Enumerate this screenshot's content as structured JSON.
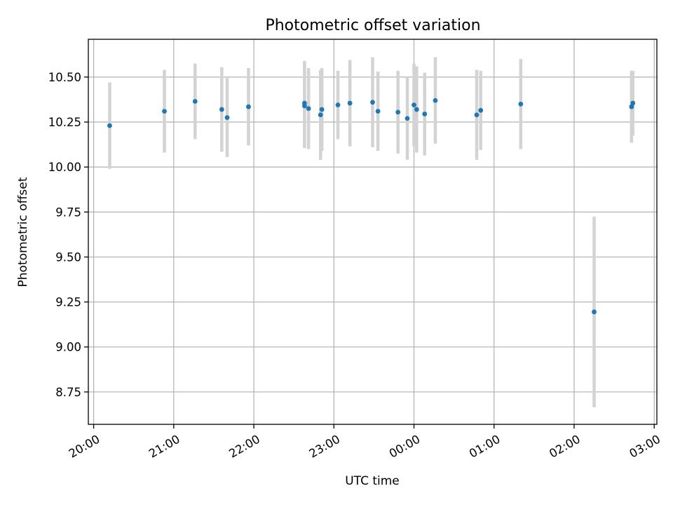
{
  "chart_data": {
    "type": "scatter",
    "title": "Photometric offset variation",
    "xlabel": "UTC time",
    "ylabel": "Photometric offset",
    "x_axis": {
      "kind": "time",
      "min": "19:56",
      "max": "03:02",
      "ticks": [
        "20:00",
        "21:00",
        "22:00",
        "23:00",
        "00:00",
        "01:00",
        "02:00",
        "03:00"
      ]
    },
    "y_axis": {
      "min": 8.57,
      "max": 10.71,
      "ticks": [
        8.75,
        9.0,
        9.25,
        9.5,
        9.75,
        10.0,
        10.25,
        10.5
      ],
      "tick_labels": [
        "8.75",
        "9.00",
        "9.25",
        "9.50",
        "9.75",
        "10.00",
        "10.25",
        "10.50"
      ]
    },
    "grid": true,
    "colors": {
      "point": "#1f77b4",
      "error_bar": "#d3d3d3",
      "grid": "#b0b0b0"
    },
    "points": [
      {
        "time": "20:12",
        "y": 10.23,
        "err": 0.24
      },
      {
        "time": "20:53",
        "y": 10.31,
        "err": 0.23
      },
      {
        "time": "21:16",
        "y": 10.365,
        "err": 0.21
      },
      {
        "time": "21:36",
        "y": 10.32,
        "err": 0.235
      },
      {
        "time": "21:40",
        "y": 10.275,
        "err": 0.22
      },
      {
        "time": "21:56",
        "y": 10.335,
        "err": 0.215
      },
      {
        "time": "22:38",
        "y": 10.355,
        "err": 0.235
      },
      {
        "time": "22:38",
        "y": 10.34,
        "err": 0.235
      },
      {
        "time": "22:41",
        "y": 10.325,
        "err": 0.225
      },
      {
        "time": "22:50",
        "y": 10.29,
        "err": 0.25
      },
      {
        "time": "22:51",
        "y": 10.32,
        "err": 0.23
      },
      {
        "time": "23:03",
        "y": 10.345,
        "err": 0.19
      },
      {
        "time": "23:12",
        "y": 10.355,
        "err": 0.24
      },
      {
        "time": "23:29",
        "y": 10.36,
        "err": 0.25
      },
      {
        "time": "23:33",
        "y": 10.31,
        "err": 0.22
      },
      {
        "time": "23:48",
        "y": 10.305,
        "err": 0.23
      },
      {
        "time": "23:55",
        "y": 10.27,
        "err": 0.23
      },
      {
        "time": "00:00",
        "y": 10.345,
        "err": 0.23
      },
      {
        "time": "00:02",
        "y": 10.32,
        "err": 0.24
      },
      {
        "time": "00:08",
        "y": 10.295,
        "err": 0.23
      },
      {
        "time": "00:16",
        "y": 10.37,
        "err": 0.24
      },
      {
        "time": "00:47",
        "y": 10.29,
        "err": 0.25
      },
      {
        "time": "00:50",
        "y": 10.315,
        "err": 0.22
      },
      {
        "time": "01:20",
        "y": 10.35,
        "err": 0.25
      },
      {
        "time": "02:15",
        "y": 9.195,
        "err": 0.53
      },
      {
        "time": "02:43",
        "y": 10.335,
        "err": 0.2
      },
      {
        "time": "02:44",
        "y": 10.355,
        "err": 0.18
      }
    ]
  }
}
